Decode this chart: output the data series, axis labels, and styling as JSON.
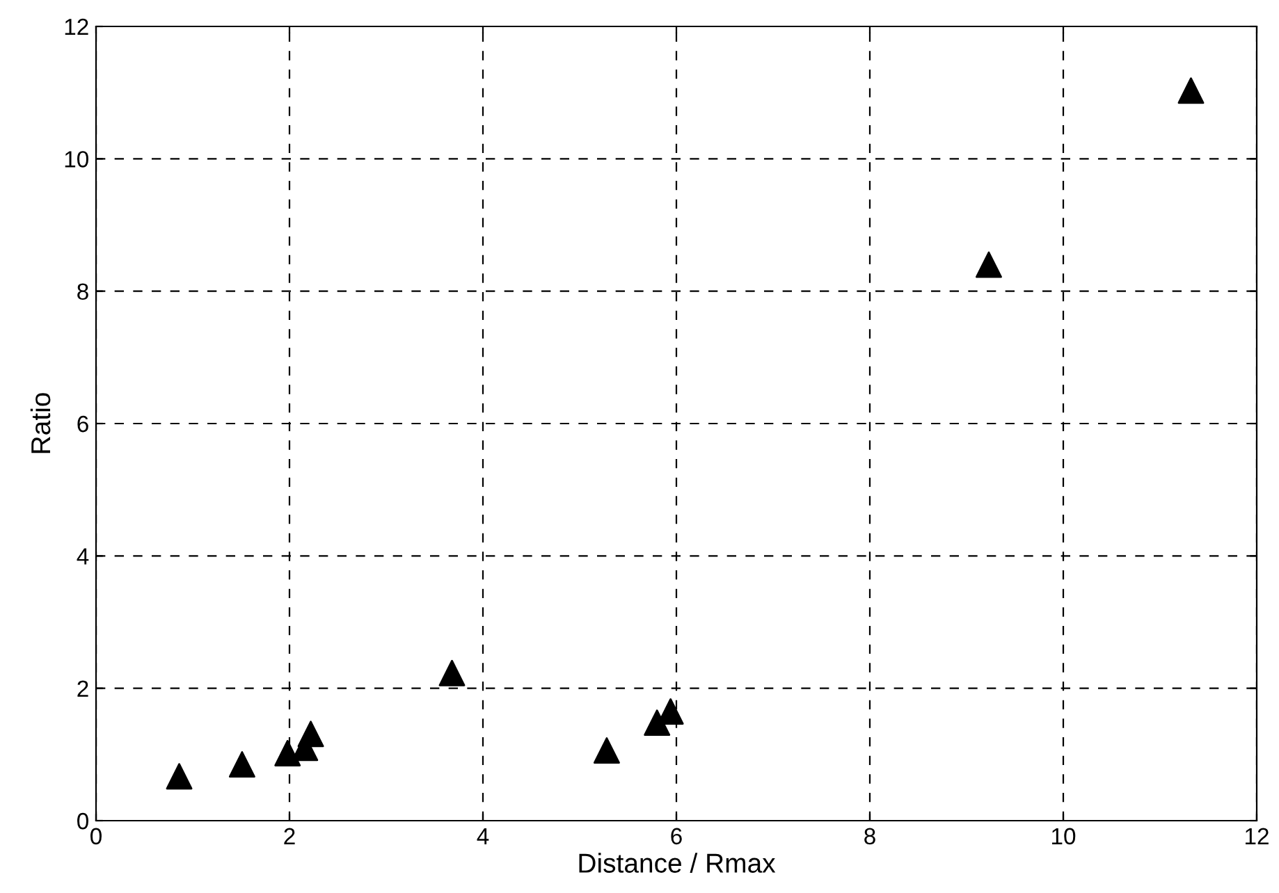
{
  "chart_data": {
    "type": "scatter",
    "xlabel": "Distance / Rmax",
    "ylabel": "Ratio",
    "x": [
      0.86,
      1.51,
      1.98,
      2.16,
      2.22,
      3.68,
      5.28,
      5.8,
      5.94,
      9.23,
      11.32
    ],
    "series": [
      {
        "color": "#000000",
        "values": [
          0.67,
          0.85,
          1.02,
          1.1,
          1.31,
          2.23,
          1.06,
          1.48,
          1.65,
          8.4,
          11.03
        ]
      }
    ],
    "xlim": [
      0,
      12
    ],
    "ylim": [
      0,
      12
    ],
    "xticks": [
      0,
      2,
      4,
      6,
      8,
      10,
      12
    ],
    "yticks": [
      0,
      2,
      4,
      6,
      8,
      10,
      12
    ],
    "grid": true,
    "marker": "triangle"
  }
}
